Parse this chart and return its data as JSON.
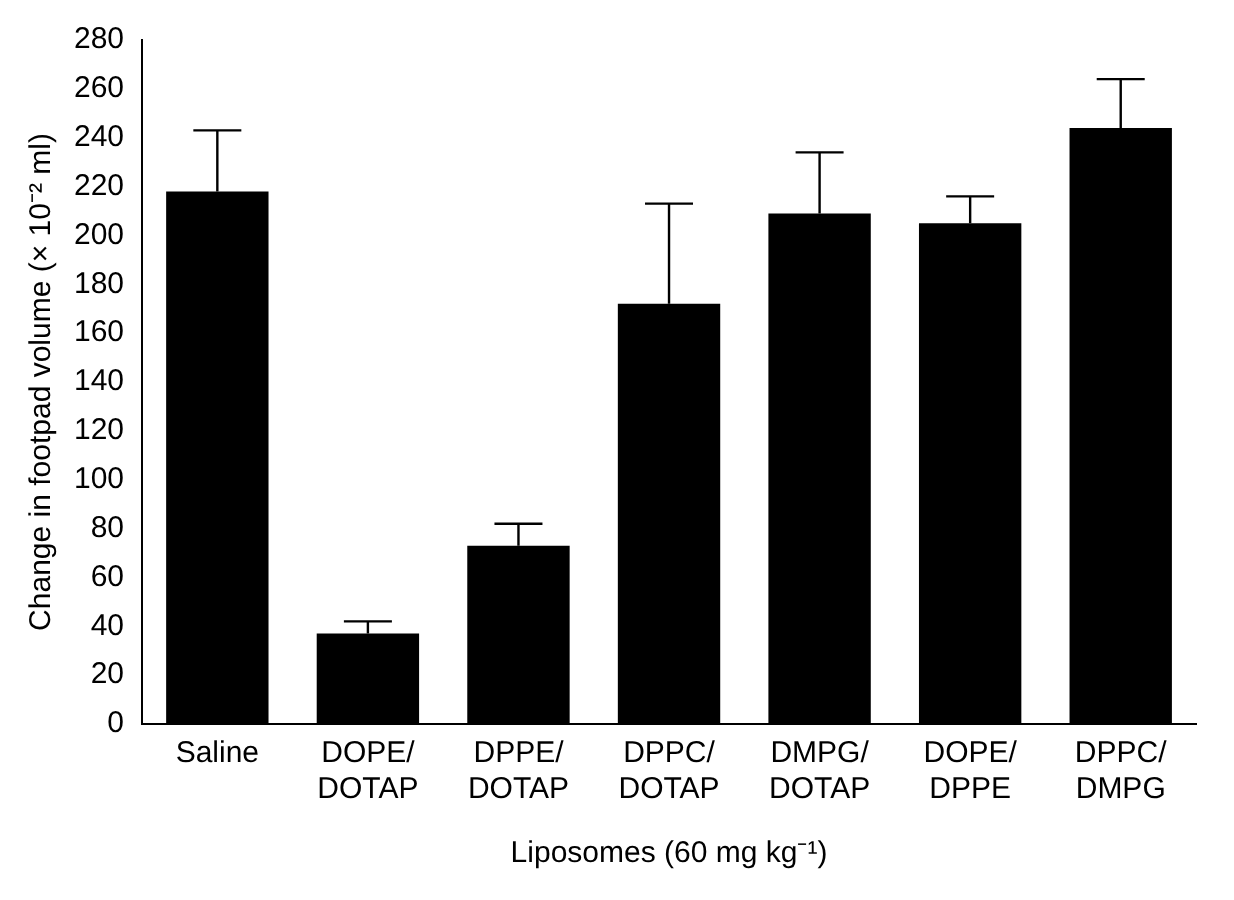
{
  "chart_data": {
    "type": "bar",
    "xlabel": "Liposomes (60 mg kg⁻¹)",
    "ylabel": "Change in footpad volume (× 10⁻² ml)",
    "categories": [
      "Saline",
      "DOPE/DOTAP",
      "DPPE/DOTAP",
      "DPPC/DOTAP",
      "DMPG/DOTAP",
      "DOPE/DPPE",
      "DPPC/DMPG"
    ],
    "values": [
      218,
      37,
      73,
      172,
      209,
      205,
      244
    ],
    "color": "#000000",
    "errors": [
      [
        218,
        243
      ],
      [
        37,
        42
      ],
      [
        73,
        82
      ],
      [
        172,
        213
      ],
      [
        209,
        234
      ],
      [
        205,
        216
      ],
      [
        244,
        264
      ]
    ],
    "ylim": [
      0,
      280
    ],
    "yticks": [
      0,
      20,
      40,
      60,
      80,
      100,
      120,
      140,
      160,
      180,
      200,
      220,
      240,
      260,
      280
    ],
    "grid": false,
    "legend": false
  }
}
